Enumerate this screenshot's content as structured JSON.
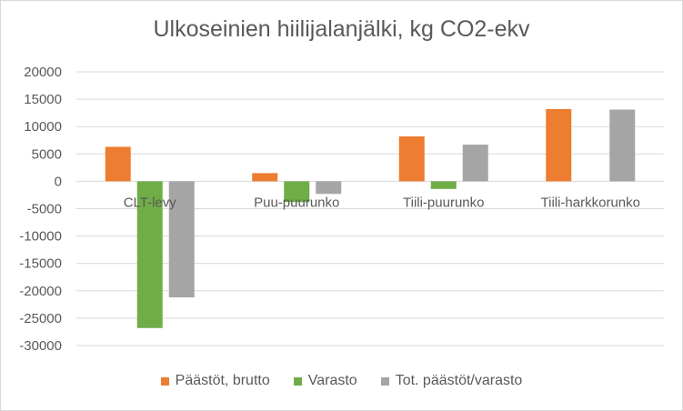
{
  "chart_data": {
    "type": "bar",
    "title": "Ulkoseinien hiilijalanjälki, kg CO2-ekv",
    "xlabel": "",
    "ylabel": "",
    "categories": [
      "CLT-levy",
      "Puu-puurunko",
      "Tiili-puurunko",
      "Tiili-harkkorunko"
    ],
    "series": [
      {
        "name": "Päästöt, brutto",
        "color": "#ED7D31",
        "values": [
          6300,
          1500,
          8200,
          13200
        ]
      },
      {
        "name": "Varasto",
        "color": "#70AD47",
        "values": [
          -26800,
          -3800,
          -1400,
          0
        ]
      },
      {
        "name": "Tot. päästöt/varasto",
        "color": "#A5A5A5",
        "values": [
          -21200,
          -2300,
          6700,
          13100
        ]
      }
    ],
    "ylim": [
      -30000,
      20000
    ],
    "yticks": [
      20000,
      15000,
      10000,
      5000,
      0,
      -5000,
      -10000,
      -15000,
      -20000,
      -25000,
      -30000
    ],
    "grid": true,
    "legend_position": "bottom"
  }
}
